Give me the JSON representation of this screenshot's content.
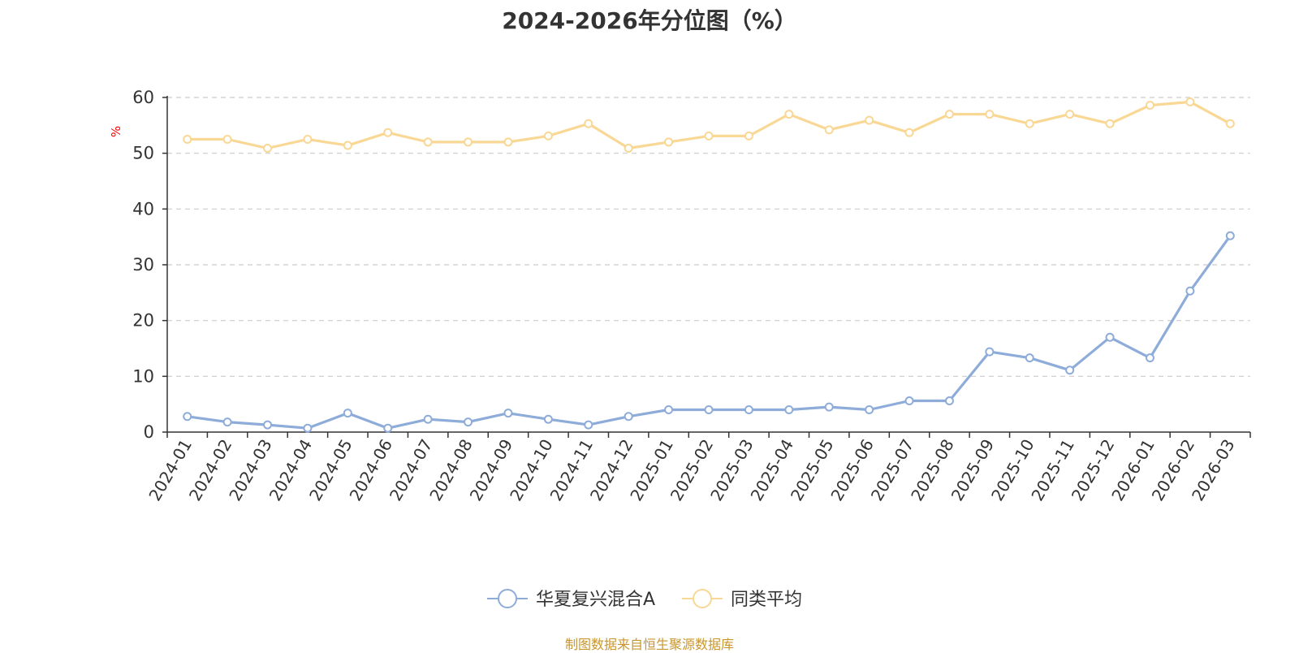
{
  "chart_data": {
    "type": "line",
    "title": "2024-2026年分位图（%）",
    "ylabel": "%",
    "xlabel": "",
    "ylim": [
      0,
      60
    ],
    "yticks": [
      "0",
      "10",
      "20",
      "30",
      "40",
      "50",
      "60"
    ],
    "grid": true,
    "legend_position": "bottom-center",
    "categories": [
      "2024-01",
      "2024-02",
      "2024-03",
      "2024-04",
      "2024-05",
      "2024-06",
      "2024-07",
      "2024-08",
      "2024-09",
      "2024-10",
      "2024-11",
      "2024-12",
      "2025-01",
      "2025-02",
      "2025-03",
      "2025-04",
      "2025-05",
      "2025-06",
      "2025-07",
      "2025-08",
      "2025-09",
      "2025-10",
      "2025-11",
      "2025-12",
      "2026-01",
      "2026-02",
      "2026-03"
    ],
    "series": [
      {
        "name": "华夏复兴混合A",
        "color": "#8eacd9",
        "values": [
          2.8,
          1.8,
          1.3,
          0.7,
          3.4,
          0.7,
          2.3,
          1.8,
          3.4,
          2.3,
          1.3,
          2.8,
          4.0,
          4.0,
          4.0,
          4.0,
          4.5,
          4.0,
          5.6,
          5.6,
          14.4,
          13.3,
          11.1,
          17.0,
          13.3,
          25.3,
          35.2
        ]
      },
      {
        "name": "同类平均",
        "color": "#f9d794",
        "values": [
          52.5,
          52.5,
          50.9,
          52.5,
          51.4,
          53.7,
          52.0,
          52.0,
          52.0,
          53.1,
          55.3,
          50.9,
          52.0,
          53.1,
          53.1,
          57.0,
          54.2,
          55.9,
          53.7,
          57.0,
          57.0,
          55.3,
          57.0,
          55.3,
          58.6,
          59.2,
          55.3
        ]
      }
    ]
  },
  "footer": {
    "source": "制图数据来自恒生聚源数据库"
  }
}
